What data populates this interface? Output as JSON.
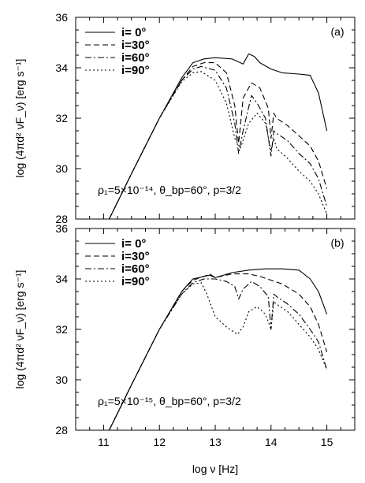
{
  "chart_data": [
    {
      "type": "line",
      "panel_label": "(a)",
      "xlim": [
        10.5,
        15.5
      ],
      "ylim": [
        28,
        36
      ],
      "x_ticks": [
        11,
        12,
        13,
        14,
        15
      ],
      "y_ticks": [
        28,
        30,
        32,
        34,
        36
      ],
      "ylabel": "log (4πd² νF_ν) [erg s⁻¹]",
      "annotation": "ρ₁=5×10⁻¹⁴, θ_bp=60°, p=3/2",
      "legend_position": "top-left",
      "series": [
        {
          "name": "i=  0°",
          "dash": "solid",
          "x": [
            11.1,
            11.5,
            12.0,
            12.4,
            12.6,
            12.8,
            13.0,
            13.3,
            13.5,
            13.6,
            13.7,
            13.8,
            14.0,
            14.2,
            14.5,
            14.7,
            14.85,
            15.0
          ],
          "y": [
            28.0,
            29.8,
            32.0,
            33.6,
            34.2,
            34.35,
            34.4,
            34.35,
            34.15,
            34.55,
            34.45,
            34.2,
            33.95,
            33.8,
            33.75,
            33.7,
            33.0,
            31.5
          ]
        },
        {
          "name": "i=30°",
          "dash": "dashed",
          "x": [
            11.1,
            11.5,
            12.0,
            12.4,
            12.6,
            12.8,
            13.0,
            13.2,
            13.35,
            13.42,
            13.5,
            13.65,
            13.8,
            13.95,
            14.0,
            14.05,
            14.1,
            14.3,
            14.5,
            14.7,
            14.85,
            15.0
          ],
          "y": [
            28.0,
            29.8,
            32.0,
            33.5,
            34.05,
            34.2,
            34.2,
            33.8,
            32.5,
            31.0,
            32.8,
            33.4,
            33.2,
            32.4,
            31.2,
            32.2,
            32.0,
            31.7,
            31.3,
            30.9,
            30.3,
            29.2
          ]
        },
        {
          "name": "i=60°",
          "dash": "dashdot",
          "x": [
            11.1,
            11.5,
            12.0,
            12.4,
            12.6,
            12.75,
            13.0,
            13.2,
            13.35,
            13.42,
            13.5,
            13.65,
            13.75,
            13.9,
            14.0,
            14.05,
            14.1,
            14.3,
            14.5,
            14.7,
            14.85,
            15.0
          ],
          "y": [
            28.0,
            29.8,
            32.0,
            33.5,
            33.95,
            34.05,
            33.9,
            33.2,
            31.8,
            30.6,
            31.5,
            32.9,
            32.6,
            32.0,
            30.5,
            31.5,
            31.4,
            31.1,
            30.6,
            30.2,
            29.6,
            28.5
          ]
        },
        {
          "name": "i=90°",
          "dash": "dotted",
          "x": [
            11.1,
            11.5,
            12.0,
            12.4,
            12.6,
            12.75,
            13.0,
            13.2,
            13.35,
            13.45,
            13.6,
            13.75,
            13.9,
            14.0,
            14.05,
            14.1,
            14.3,
            14.5,
            14.7,
            14.85,
            15.0
          ],
          "y": [
            28.0,
            29.8,
            32.0,
            33.45,
            33.8,
            33.85,
            33.5,
            32.6,
            31.2,
            30.8,
            31.8,
            32.2,
            31.8,
            30.7,
            31.2,
            30.8,
            30.4,
            29.9,
            29.5,
            29.0,
            28.2
          ]
        }
      ]
    },
    {
      "type": "line",
      "panel_label": "(b)",
      "xlim": [
        10.5,
        15.5
      ],
      "ylim": [
        28,
        36
      ],
      "x_ticks": [
        11,
        12,
        13,
        14,
        15
      ],
      "y_ticks": [
        28,
        30,
        32,
        34,
        36
      ],
      "xlabel": "log ν [Hz]",
      "ylabel": "log (4πd² νF_ν) [erg s⁻¹]",
      "annotation": "ρ₁=5×10⁻¹⁵, θ_bp=60°, p=3/2",
      "legend_position": "top-left",
      "series": [
        {
          "name": "i=  0°",
          "dash": "solid",
          "x": [
            11.1,
            11.5,
            12.0,
            12.4,
            12.6,
            12.8,
            12.9,
            13.0,
            13.3,
            13.6,
            13.9,
            14.2,
            14.5,
            14.7,
            14.85,
            15.0
          ],
          "y": [
            28.0,
            29.8,
            32.0,
            33.5,
            34.0,
            34.1,
            34.15,
            34.05,
            34.25,
            34.35,
            34.4,
            34.4,
            34.35,
            34.0,
            33.5,
            32.6
          ]
        },
        {
          "name": "i=30°",
          "dash": "dashed",
          "x": [
            11.1,
            11.5,
            12.0,
            12.4,
            12.6,
            12.8,
            12.9,
            13.0,
            13.3,
            13.6,
            13.8,
            14.0,
            14.2,
            14.5,
            14.7,
            14.85,
            15.0
          ],
          "y": [
            28.0,
            29.8,
            32.0,
            33.5,
            33.95,
            34.1,
            34.2,
            34.05,
            34.2,
            34.2,
            34.1,
            33.95,
            33.8,
            33.4,
            32.9,
            32.2,
            31.1
          ]
        },
        {
          "name": "i=60°",
          "dash": "dashdot",
          "x": [
            11.1,
            11.5,
            12.0,
            12.4,
            12.6,
            12.8,
            13.0,
            13.2,
            13.35,
            13.42,
            13.5,
            13.65,
            13.8,
            13.95,
            14.0,
            14.05,
            14.1,
            14.3,
            14.5,
            14.7,
            14.85,
            15.0
          ],
          "y": [
            28.0,
            29.8,
            32.0,
            33.4,
            33.85,
            34.0,
            34.0,
            33.9,
            33.7,
            33.2,
            33.6,
            33.9,
            33.7,
            33.3,
            32.0,
            33.4,
            33.3,
            33.0,
            32.6,
            32.0,
            31.5,
            30.4
          ]
        },
        {
          "name": "i=90°",
          "dash": "dotted",
          "x": [
            11.1,
            11.5,
            12.0,
            12.4,
            12.6,
            12.75,
            12.85,
            13.0,
            13.2,
            13.4,
            13.5,
            13.6,
            13.75,
            13.9,
            14.0,
            14.05,
            14.1,
            14.3,
            14.5,
            14.7,
            14.85,
            15.0
          ],
          "y": [
            28.0,
            29.8,
            32.0,
            33.4,
            33.8,
            33.85,
            33.4,
            32.5,
            32.1,
            31.8,
            32.1,
            32.7,
            32.9,
            32.6,
            32.0,
            33.1,
            33.0,
            32.7,
            32.2,
            31.7,
            31.2,
            30.4
          ]
        }
      ]
    }
  ]
}
